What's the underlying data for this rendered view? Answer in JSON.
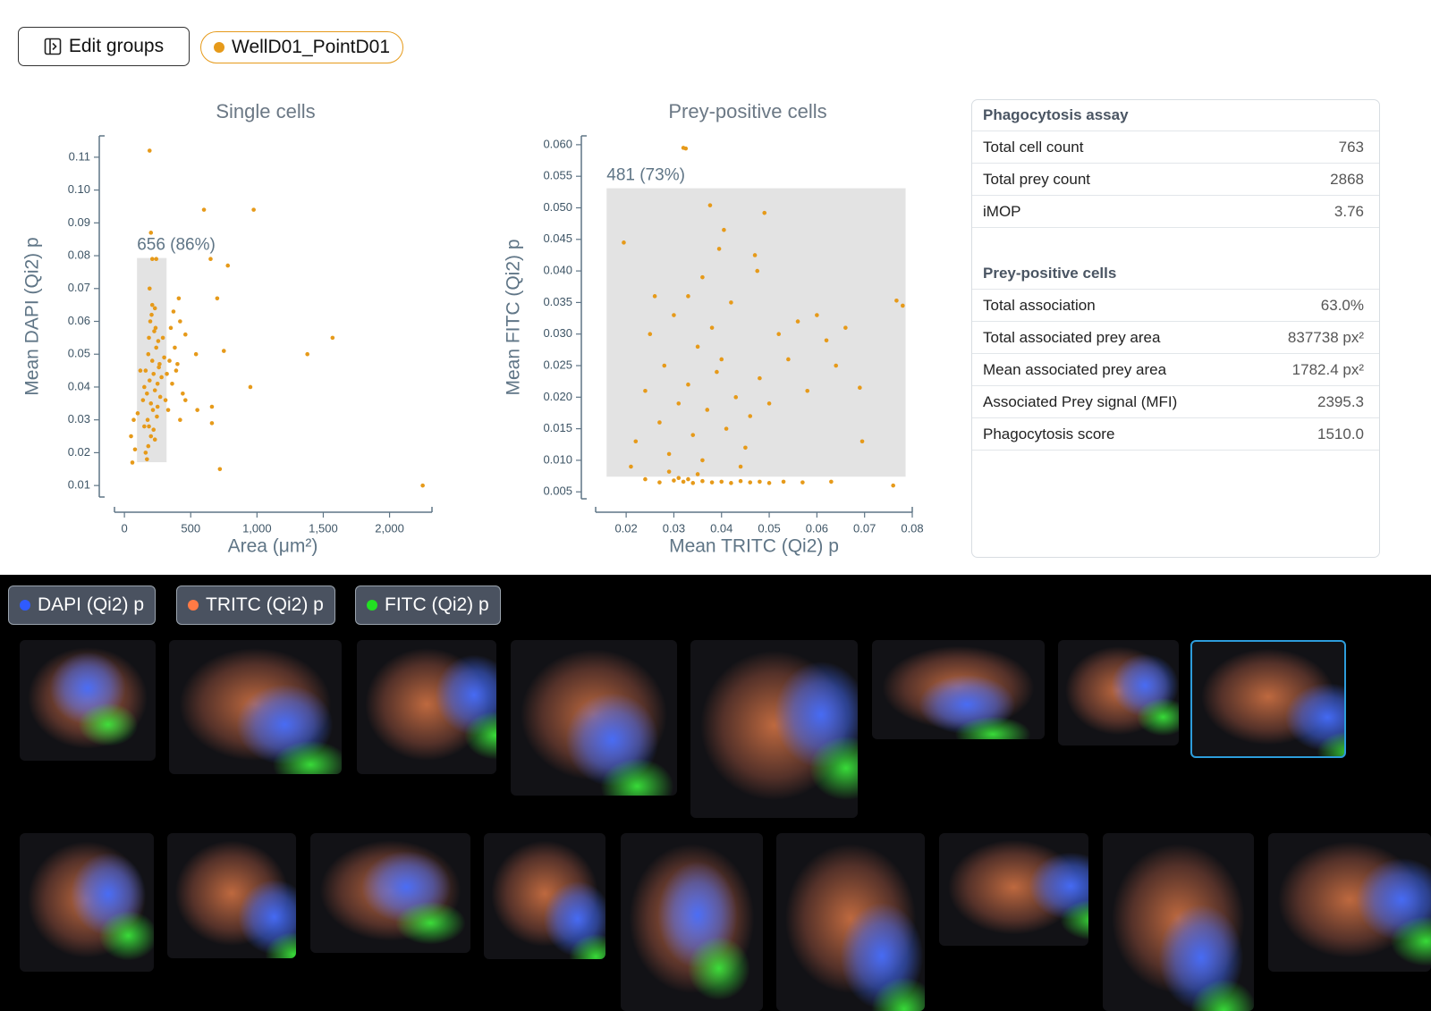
{
  "toolbar": {
    "edit_button": "Edit groups",
    "group_chip": "WellD01_PointD01",
    "group_color": "#e69a1a"
  },
  "chart_data": [
    {
      "type": "scatter",
      "title": "Single cells",
      "x_label": "Area (μm²)",
      "y_label": "Mean DAPI (Qi2) p",
      "color": "#e69a1a",
      "xlim": [
        -75,
        2320
      ],
      "ylim": [
        0.0065,
        0.1165
      ],
      "xticks": [
        0,
        500,
        {
          "value": 1000,
          "label": "1,000"
        },
        {
          "value": 1500,
          "label": "1,500"
        },
        {
          "value": 2000,
          "label": "2,000"
        }
      ],
      "yticks": [
        0.01,
        0.02,
        0.03,
        0.04,
        0.05,
        0.06,
        0.07,
        0.08,
        0.09,
        {
          "value": 0.1,
          "label": "0.10"
        },
        0.11
      ],
      "gate": {
        "x": [
          95,
          318
        ],
        "y": [
          0.0171,
          0.0793
        ],
        "label": "656 (86%)"
      },
      "x": [
        150,
        160,
        170,
        180,
        190,
        200,
        210,
        220,
        230,
        240,
        250,
        260,
        270,
        280,
        290,
        300,
        310,
        175,
        185,
        195,
        205,
        215,
        225,
        235,
        245,
        255,
        265,
        200,
        210,
        220,
        180,
        190,
        230,
        240,
        250,
        160,
        170,
        320,
        340,
        360,
        380,
        400,
        420,
        440,
        350,
        370,
        390,
        410,
        330,
        60,
        50,
        70,
        80,
        100,
        120,
        190,
        600,
        975,
        650,
        780,
        700,
        1570,
        1380,
        950,
        2250,
        720,
        660,
        750,
        550,
        460,
        200,
        210,
        150,
        140,
        230,
        460,
        420,
        660,
        540,
        185
      ],
      "y": [
        0.04,
        0.045,
        0.038,
        0.05,
        0.042,
        0.035,
        0.048,
        0.044,
        0.039,
        0.052,
        0.041,
        0.046,
        0.037,
        0.043,
        0.055,
        0.049,
        0.036,
        0.03,
        0.028,
        0.06,
        0.062,
        0.033,
        0.057,
        0.058,
        0.031,
        0.054,
        0.047,
        0.025,
        0.065,
        0.027,
        0.022,
        0.07,
        0.064,
        0.079,
        0.034,
        0.02,
        0.018,
        0.044,
        0.048,
        0.041,
        0.052,
        0.047,
        0.06,
        0.038,
        0.058,
        0.063,
        0.045,
        0.067,
        0.033,
        0.017,
        0.025,
        0.03,
        0.021,
        0.032,
        0.045,
        0.112,
        0.094,
        0.094,
        0.079,
        0.077,
        0.067,
        0.055,
        0.05,
        0.04,
        0.01,
        0.015,
        0.029,
        0.051,
        0.033,
        0.056,
        0.087,
        0.079,
        0.028,
        0.036,
        0.024,
        0.036,
        0.03,
        0.034,
        0.05,
        0.055
      ]
    },
    {
      "type": "scatter",
      "title": "Prey-positive cells",
      "x_label": "Mean TRITC (Qi2) p",
      "y_label": "Mean FITC (Qi2) p",
      "color": "#e69a1a",
      "xlim": [
        0.0136,
        0.08
      ],
      "ylim": [
        0.0039,
        0.0614
      ],
      "xticks": [
        0.02,
        0.03,
        0.04,
        0.05,
        0.06,
        0.07,
        0.08
      ],
      "yticks": [
        0.005,
        {
          "value": 0.01,
          "label": "0.010"
        },
        0.015,
        {
          "value": 0.02,
          "label": "0.020"
        },
        0.025,
        {
          "value": 0.03,
          "label": "0.030"
        },
        0.035,
        {
          "value": 0.04,
          "label": "0.040"
        },
        0.045,
        {
          "value": 0.05,
          "label": "0.050"
        },
        0.055,
        {
          "value": 0.06,
          "label": "0.060"
        }
      ],
      "gate": {
        "x": [
          0.0159,
          0.0786
        ],
        "y": [
          0.0074,
          0.0531
        ],
        "label": "481 (73%)"
      },
      "x": [
        0.032,
        0.0325,
        0.0376,
        0.049,
        0.0767,
        0.078,
        0.0195,
        0.0405,
        0.0395,
        0.047,
        0.0475,
        0.069,
        0.0695,
        0.076,
        0.025,
        0.028,
        0.03,
        0.033,
        0.035,
        0.037,
        0.039,
        0.041,
        0.043,
        0.045,
        0.027,
        0.029,
        0.031,
        0.034,
        0.036,
        0.038,
        0.04,
        0.042,
        0.044,
        0.046,
        0.048,
        0.05,
        0.052,
        0.054,
        0.056,
        0.058,
        0.06,
        0.062,
        0.064,
        0.066,
        0.024,
        0.022,
        0.021,
        0.026,
        0.033,
        0.036,
        0.024,
        0.027,
        0.03,
        0.032,
        0.034,
        0.036,
        0.038,
        0.04,
        0.042,
        0.044,
        0.046,
        0.048,
        0.05,
        0.053,
        0.057,
        0.063,
        0.031,
        0.033,
        0.035,
        0.029
      ],
      "y": [
        0.0595,
        0.0594,
        0.0504,
        0.0492,
        0.0353,
        0.0345,
        0.0445,
        0.0465,
        0.0435,
        0.0425,
        0.04,
        0.0215,
        0.013,
        0.006,
        0.03,
        0.025,
        0.033,
        0.022,
        0.028,
        0.018,
        0.024,
        0.015,
        0.02,
        0.012,
        0.016,
        0.011,
        0.019,
        0.014,
        0.01,
        0.031,
        0.026,
        0.035,
        0.009,
        0.017,
        0.023,
        0.019,
        0.03,
        0.026,
        0.032,
        0.021,
        0.033,
        0.029,
        0.025,
        0.031,
        0.021,
        0.013,
        0.009,
        0.036,
        0.036,
        0.039,
        0.007,
        0.0065,
        0.0068,
        0.0066,
        0.0064,
        0.0067,
        0.0065,
        0.0066,
        0.0064,
        0.0067,
        0.0065,
        0.0066,
        0.0064,
        0.0066,
        0.0065,
        0.0066,
        0.0072,
        0.007,
        0.0078,
        0.0082
      ]
    }
  ],
  "table": {
    "sections": [
      {
        "title": "Phagocytosis assay",
        "rows": [
          [
            "Total cell count",
            "763"
          ],
          [
            "Total prey count",
            "2868"
          ],
          [
            "iMOP",
            "3.76"
          ]
        ]
      },
      {
        "title": "Prey-positive cells",
        "rows": [
          [
            "Total association",
            "63.0%"
          ],
          [
            "Total associated prey area",
            "837738 px²"
          ],
          [
            "Mean associated prey area",
            "1782.4 px²"
          ],
          [
            "Associated Prey signal (MFI)",
            "2395.3"
          ],
          [
            "Phagocytosis score",
            "1510.0"
          ]
        ]
      }
    ]
  },
  "channels": [
    {
      "name": "DAPI (Qi2) p",
      "color": "#2f5bff"
    },
    {
      "name": "TRITC (Qi2) p",
      "color": "#ff7a45"
    },
    {
      "name": "FITC (Qi2) p",
      "color": "#22e022"
    }
  ]
}
